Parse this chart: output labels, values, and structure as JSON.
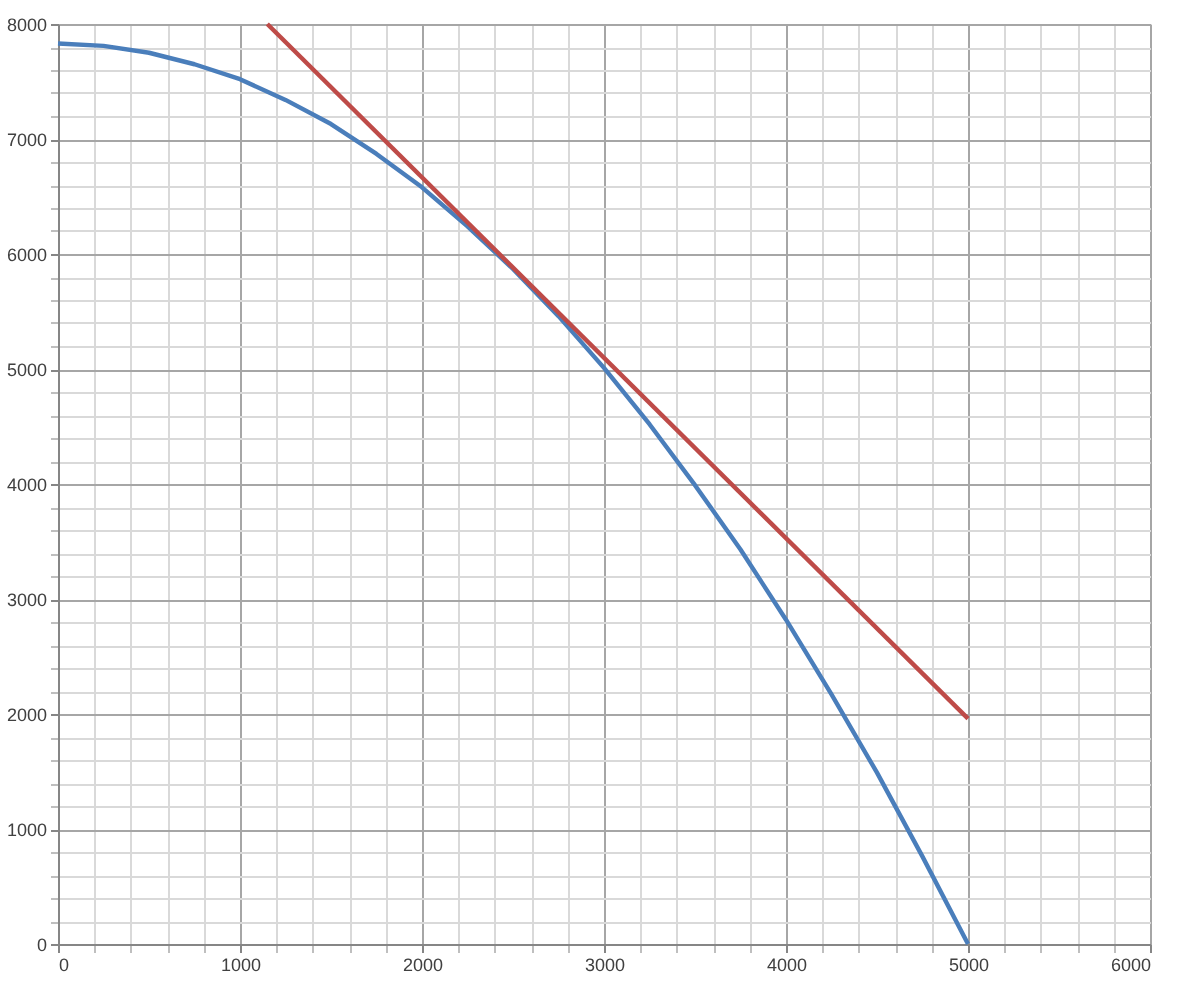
{
  "chart_data": {
    "type": "line",
    "xlim": [
      0,
      6000
    ],
    "ylim": [
      0,
      8000
    ],
    "xticks": [
      0,
      {
        "value": 200,
        "label": null
      },
      {
        "value": 400,
        "label": null
      },
      {
        "value": 600,
        "label": null
      },
      {
        "value": 800,
        "label": null
      },
      1000,
      {
        "value": 1200,
        "label": null
      },
      {
        "value": 1400,
        "label": null
      },
      {
        "value": 1600,
        "label": null
      },
      {
        "value": 1800,
        "label": null
      },
      2000,
      {
        "value": 2200,
        "label": null
      },
      {
        "value": 2400,
        "label": null
      },
      {
        "value": 2600,
        "label": null
      },
      {
        "value": 2800,
        "label": null
      },
      3000,
      {
        "value": 3200,
        "label": null
      },
      {
        "value": 3400,
        "label": null
      },
      {
        "value": 3600,
        "label": null
      },
      {
        "value": 3800,
        "label": null
      },
      4000,
      {
        "value": 4200,
        "label": null
      },
      {
        "value": 4400,
        "label": null
      },
      {
        "value": 4600,
        "label": null
      },
      {
        "value": 4800,
        "label": null
      },
      5000,
      {
        "value": 5200,
        "label": null
      },
      {
        "value": 5400,
        "label": null
      },
      {
        "value": 5600,
        "label": null
      },
      {
        "value": 5800,
        "label": null
      },
      6000
    ],
    "yticks": [
      0,
      {
        "value": 200,
        "label": null
      },
      {
        "value": 400,
        "label": null
      },
      {
        "value": 600,
        "label": null
      },
      {
        "value": 800,
        "label": null
      },
      1000,
      {
        "value": 1200,
        "label": null
      },
      {
        "value": 1400,
        "label": null
      },
      {
        "value": 1600,
        "label": null
      },
      {
        "value": 1800,
        "label": null
      },
      2000,
      {
        "value": 2200,
        "label": null
      },
      {
        "value": 2400,
        "label": null
      },
      {
        "value": 2600,
        "label": null
      },
      {
        "value": 2800,
        "label": null
      },
      3000,
      {
        "value": 3200,
        "label": null
      },
      {
        "value": 3400,
        "label": null
      },
      {
        "value": 3600,
        "label": null
      },
      {
        "value": 3800,
        "label": null
      },
      4000,
      {
        "value": 4200,
        "label": null
      },
      {
        "value": 4400,
        "label": null
      },
      {
        "value": 4600,
        "label": null
      },
      {
        "value": 4800,
        "label": null
      },
      5000,
      {
        "value": 5200,
        "label": null
      },
      {
        "value": 5400,
        "label": null
      },
      {
        "value": 5600,
        "label": null
      },
      {
        "value": 5800,
        "label": null
      },
      6000,
      {
        "value": 6200,
        "label": null
      },
      {
        "value": 6400,
        "label": null
      },
      {
        "value": 6600,
        "label": null
      },
      {
        "value": 6800,
        "label": null
      },
      7000,
      {
        "value": 7200,
        "label": null
      },
      {
        "value": 7400,
        "label": null
      },
      {
        "value": 7600,
        "label": null
      },
      {
        "value": 7800,
        "label": null
      },
      8000
    ],
    "grid": true,
    "marker": "none",
    "line_style": "solid",
    "series": [
      {
        "color": "#4a7ebb",
        "x": [
          0,
          250,
          500,
          750,
          1000,
          1250,
          1500,
          1750,
          2000,
          2250,
          2500,
          2750,
          3000,
          3250,
          3500,
          3750,
          4000,
          4250,
          4500,
          4750,
          5000
        ],
        "values": [
          7830,
          7810,
          7750,
          7650,
          7520,
          7340,
          7130,
          6870,
          6580,
          6240,
          5870,
          5460,
          5010,
          4520,
          3990,
          3430,
          2820,
          2170,
          1490,
          760,
          0
        ]
      },
      {
        "color": "#be4b48",
        "x": [
          1150,
          5000
        ],
        "values": [
          8000,
          1960
        ]
      }
    ]
  }
}
